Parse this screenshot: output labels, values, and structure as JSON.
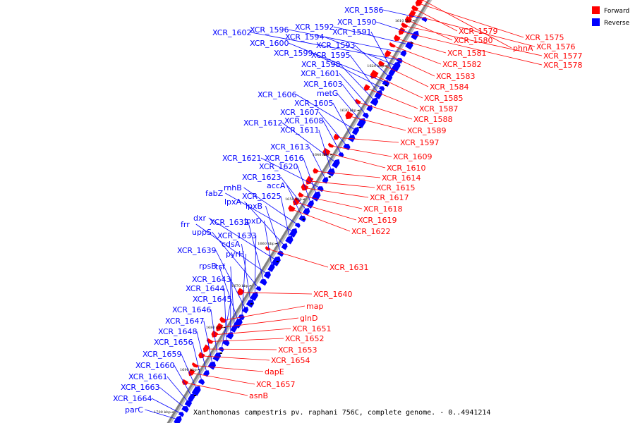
{
  "caption": "Xanthomonas campestris pv. raphani 756C, complete genome. - 0..4941214",
  "legend": [
    {
      "label": "Forward",
      "color": "#ff0000"
    },
    {
      "label": "Reverse",
      "color": "#0000ff"
    }
  ],
  "colors": {
    "forward": "#ff0000",
    "reverse": "#0000ff",
    "axis": "#808080",
    "tick": "#000000"
  },
  "ticks": [
    "1610 kbp",
    "1620 kbp",
    "1630 kbp",
    "1640 kbp",
    "1650 kbp",
    "1660 kbp",
    "1670 kbp",
    "1680 kbp",
    "1690 kbp",
    "1700 kbp"
  ],
  "reverse_genes": [
    "XCR_1586",
    "XCR_1590",
    "XCR_1592",
    "XCR_1596",
    "XCR_1602",
    "XCR_1594",
    "XCR_1591",
    "XCR_1593",
    "XCR_1600",
    "XCR_1599",
    "XCR_1595",
    "XCR_1598",
    "XCR_1601",
    "XCR_1603",
    "metG",
    "XCR_1606",
    "XCR_1605",
    "XCR_1607",
    "XCR_1608",
    "XCR_1612",
    "XCR_1611",
    "XCR_1613",
    "XCR_1621",
    "XCR_1616",
    "XCR_1620",
    "XCR_1623",
    "accA",
    "rnhB",
    "fabZ",
    "XCR_1625",
    "lpxA",
    "lpxB",
    "dxr",
    "lpxD",
    "frr",
    "XCR_1632",
    "uppS",
    "XCR_1633",
    "cdsA",
    "XCR_1639",
    "pyrH",
    "rpsB",
    "tsf",
    "XCR_1643",
    "XCR_1644",
    "XCR_1645",
    "XCR_1646",
    "XCR_1647",
    "XCR_1648",
    "XCR_1656",
    "XCR_1659",
    "XCR_1660",
    "XCR_1661",
    "XCR_1663",
    "XCR_1664",
    "parC"
  ],
  "forward_genes": [
    "phnA",
    "XCR_1575",
    "XCR_1579",
    "XCR_1576",
    "XCR_1580",
    "XCR_1577",
    "XCR_1578",
    "XCR_1581",
    "XCR_1582",
    "XCR_1583",
    "XCR_1584",
    "XCR_1585",
    "XCR_1587",
    "XCR_1588",
    "XCR_1589",
    "XCR_1597",
    "XCR_1609",
    "XCR_1610",
    "XCR_1614",
    "XCR_1615",
    "XCR_1617",
    "XCR_1618",
    "XCR_1619",
    "XCR_1622",
    "XCR_1631",
    "XCR_1640",
    "map",
    "glnD",
    "XCR_1651",
    "XCR_1652",
    "XCR_1653",
    "XCR_1654",
    "dapE",
    "XCR_1657",
    "asnB"
  ]
}
